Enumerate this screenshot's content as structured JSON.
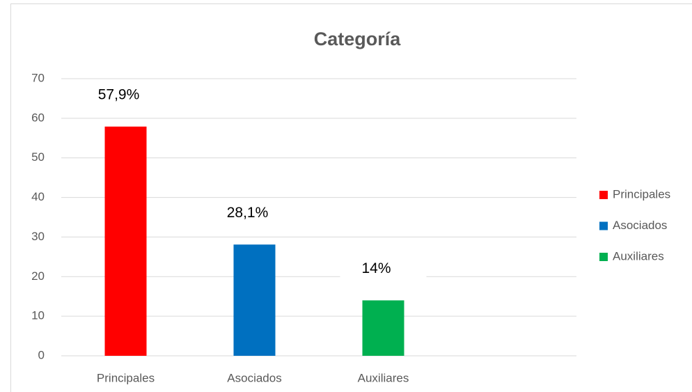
{
  "chart_data": {
    "type": "bar",
    "title": "Categoría",
    "categories": [
      "Principales",
      "Asociados",
      "Auxiliares",
      null
    ],
    "values": [
      57.9,
      28.1,
      14,
      null
    ],
    "value_labels": [
      "57,9%",
      "28,1%",
      "14%",
      null
    ],
    "colors": [
      "#ff0000",
      "#0070c0",
      "#00b050",
      null
    ],
    "ylim": [
      0,
      70
    ],
    "yticks": [
      0,
      10,
      20,
      30,
      40,
      50,
      60,
      70
    ],
    "grid": true,
    "legend": "right"
  }
}
